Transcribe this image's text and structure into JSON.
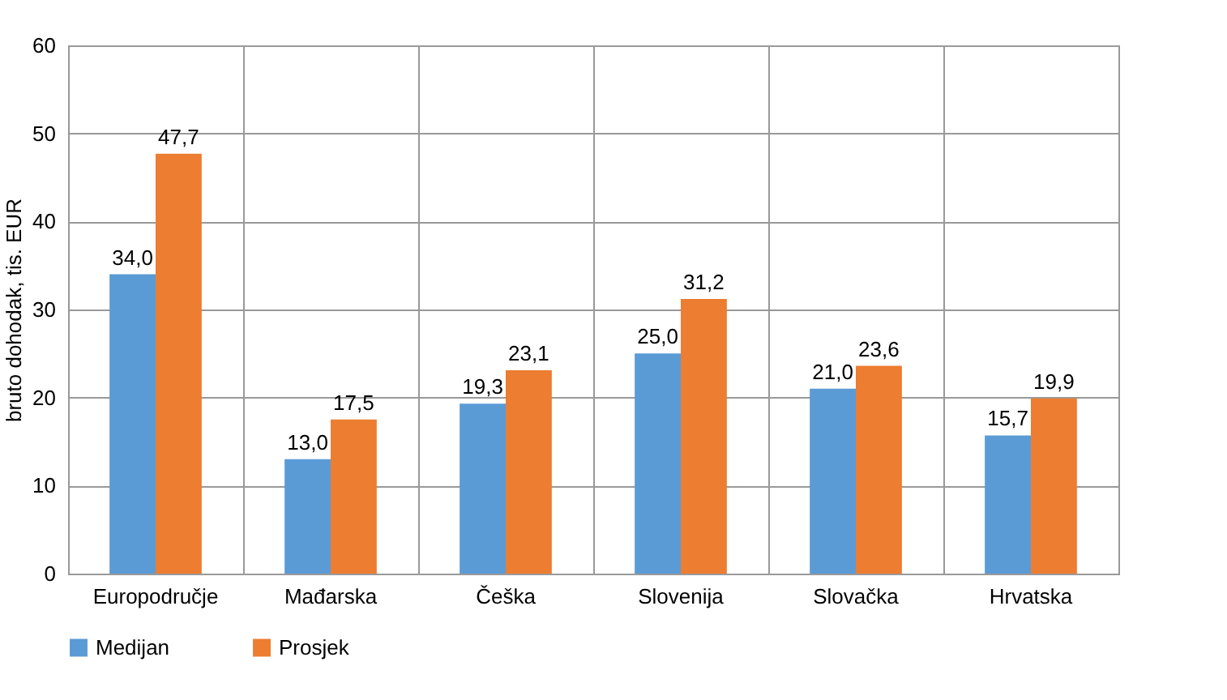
{
  "chart_data": {
    "type": "bar",
    "ylabel": "bruto dohodak, tis. EUR",
    "categories": [
      "Europodručje",
      "Mađarska",
      "Češka",
      "Slovenija",
      "Slovačka",
      "Hrvatska"
    ],
    "series": [
      {
        "name": "Medijan",
        "color": "#5b9bd5",
        "values": [
          34.0,
          13.0,
          19.3,
          25.0,
          21.0,
          15.7
        ],
        "value_labels": [
          "34,0",
          "13,0",
          "19,3",
          "25,0",
          "21,0",
          "15,7"
        ]
      },
      {
        "name": "Prosjek",
        "color": "#ed7d31",
        "values": [
          47.7,
          17.5,
          23.1,
          31.2,
          23.6,
          19.9
        ],
        "value_labels": [
          "47,7",
          "17,5",
          "23,1",
          "31,2",
          "23,6",
          "19,9"
        ]
      }
    ],
    "ylim": [
      0,
      60
    ],
    "yticks": [
      0,
      10,
      20,
      30,
      40,
      50,
      60
    ],
    "grid": true,
    "legend": "bottom"
  }
}
